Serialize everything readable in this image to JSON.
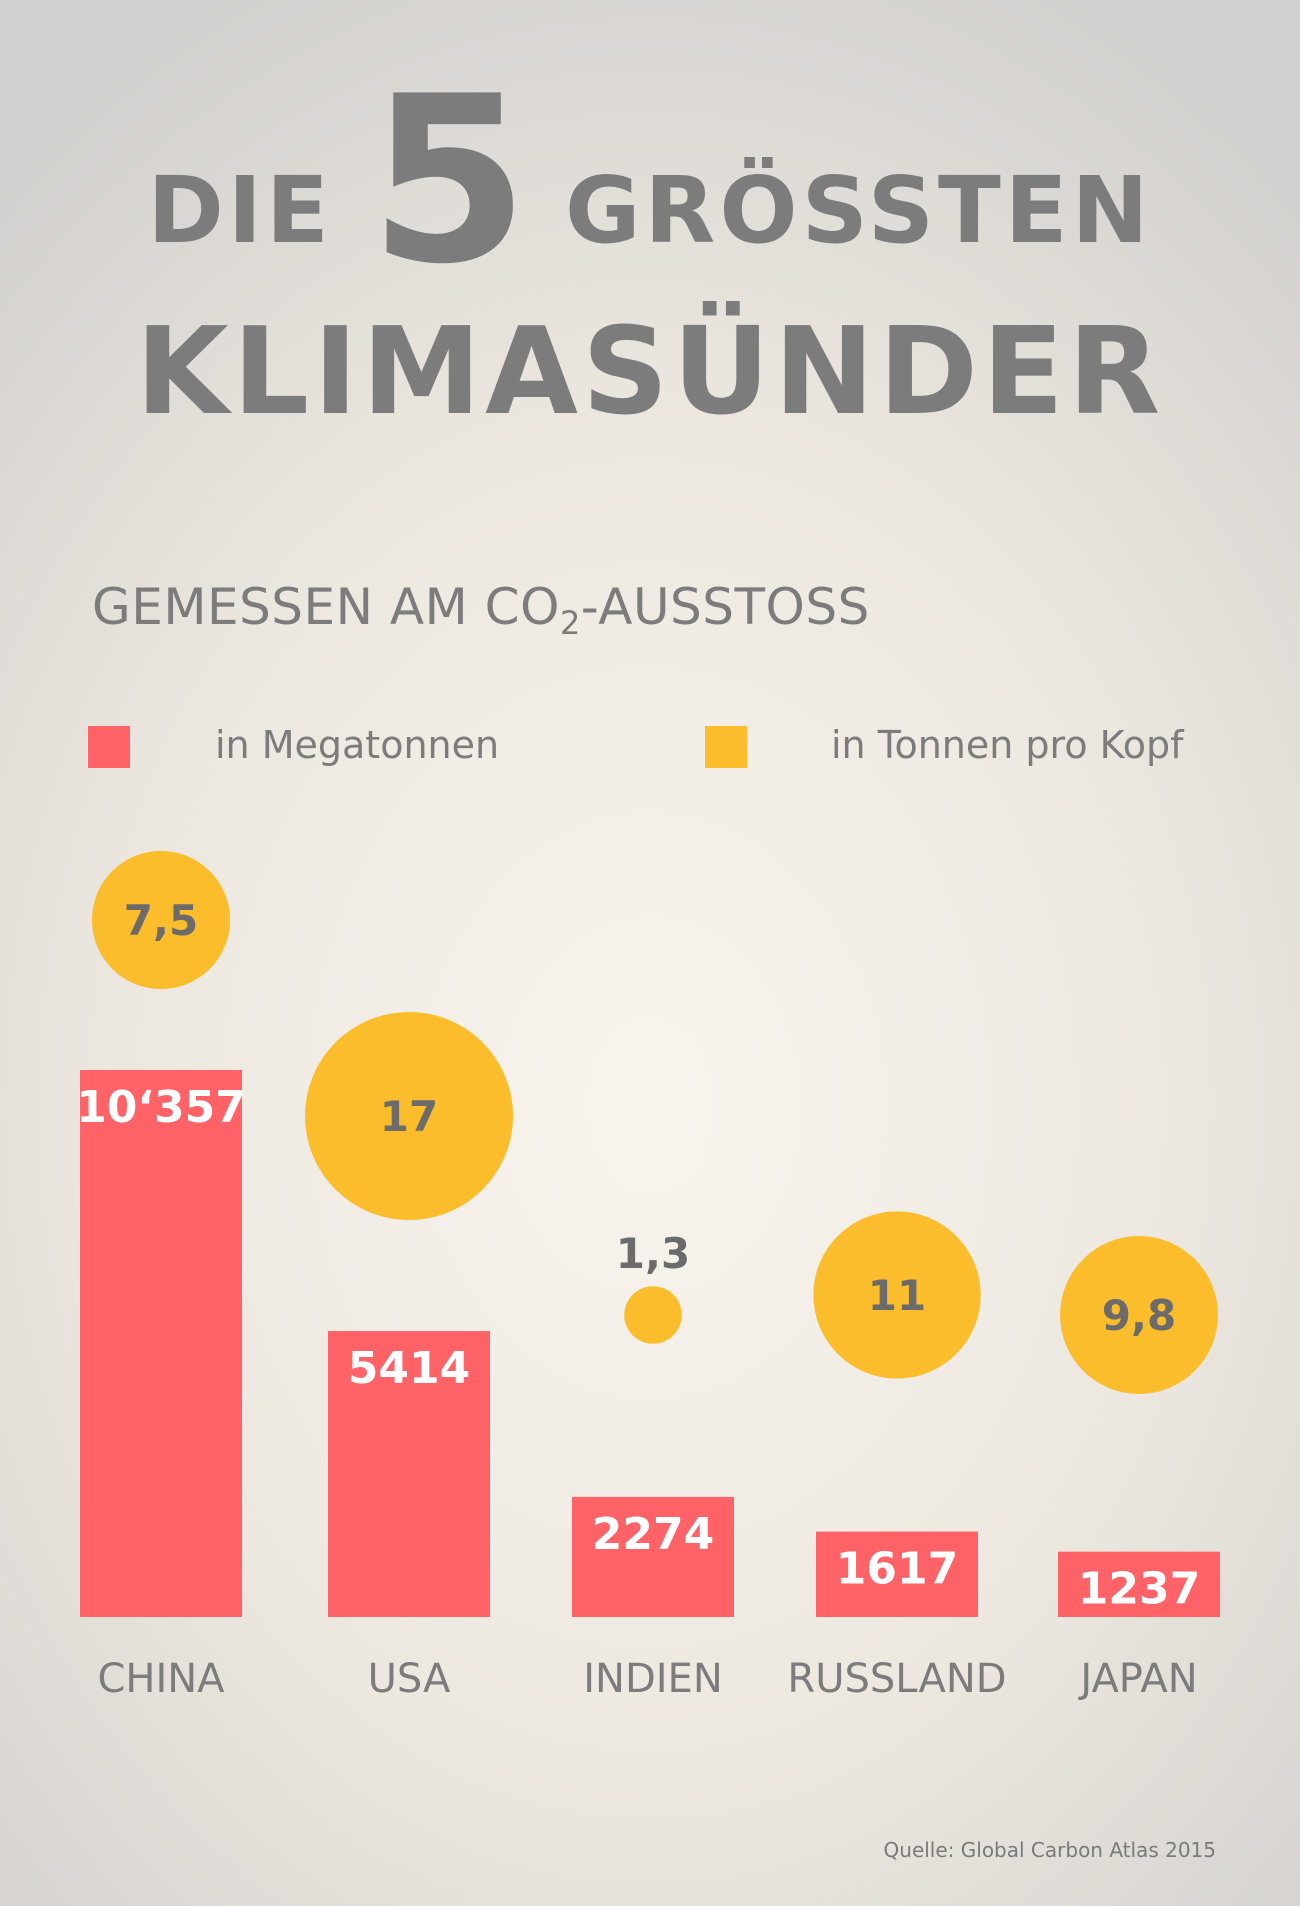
{
  "title": {
    "prefix": "DIE",
    "number": "5",
    "suffix": "GRÖSSTEN",
    "line2": "KLIMASÜNDER"
  },
  "subtitle": {
    "before": "GEMESSEN AM CO",
    "sub": "2",
    "after": "-AUSSTOSS"
  },
  "legend": [
    {
      "label": "in Megatonnen",
      "color": "#ff6368"
    },
    {
      "label": "in Tonnen pro Kopf",
      "color": "#fbbd2b"
    }
  ],
  "source": "Quelle: Global Carbon Atlas 2015",
  "chart_data": {
    "type": "bar",
    "categories": [
      "CHINA",
      "USA",
      "INDIEN",
      "RUSSLAND",
      "JAPAN"
    ],
    "series": [
      {
        "name": "in Megatonnen",
        "color": "#ff6368",
        "values": [
          10357,
          5414,
          2274,
          1617,
          1237
        ],
        "labels": [
          "10‘357",
          "5414",
          "2274",
          "1617",
          "1237"
        ]
      },
      {
        "name": "in Tonnen pro Kopf",
        "color": "#fbbd2b",
        "mark": "circle",
        "values": [
          7.5,
          17,
          1.3,
          11,
          9.8
        ],
        "labels": [
          "7,5",
          "17",
          "1,3",
          "11",
          "9,8"
        ]
      }
    ]
  }
}
